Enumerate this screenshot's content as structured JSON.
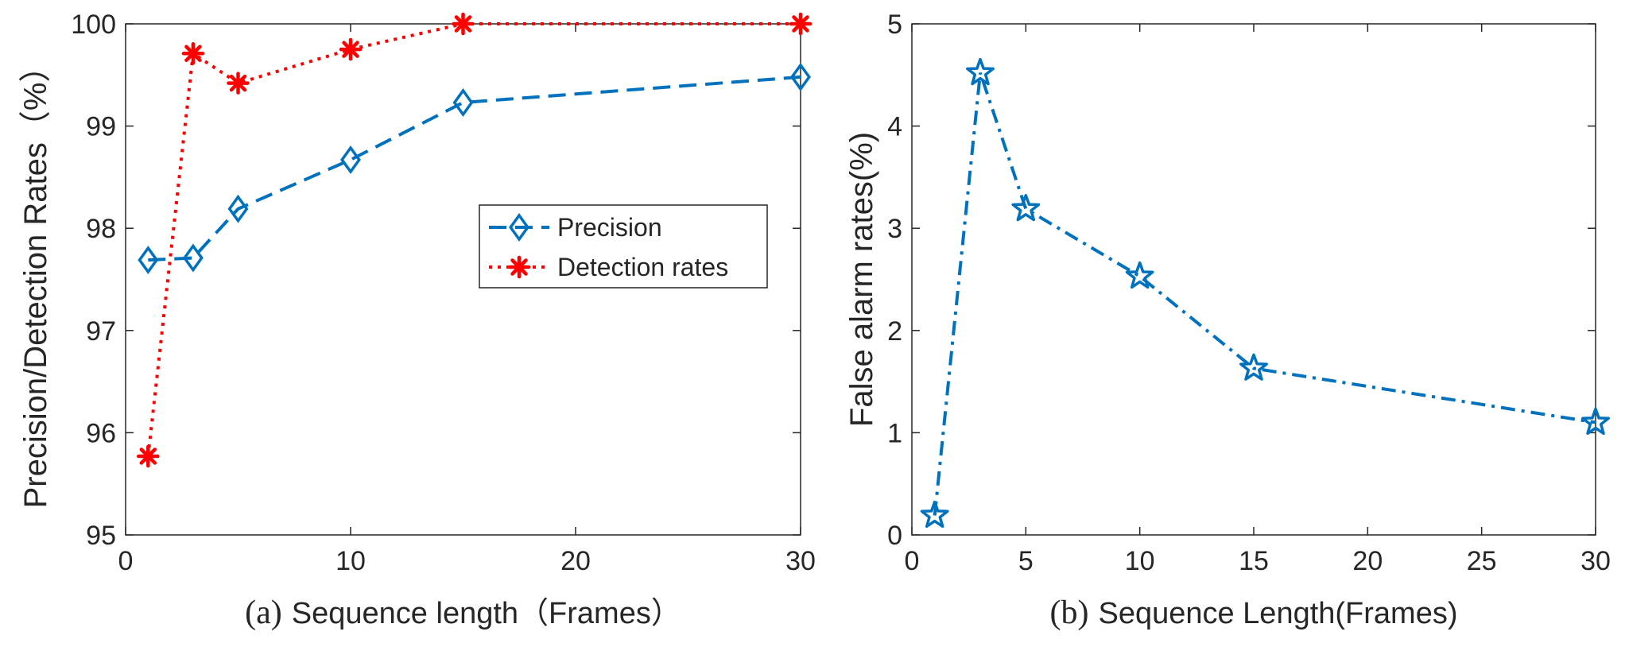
{
  "chart_data": [
    {
      "type": "line",
      "panel_label": "(a)",
      "xlabel": "Sequence length（Frames）",
      "ylabel": "Precision/Detection Rates（%）",
      "xlim": [
        0,
        30
      ],
      "ylim": [
        95,
        100
      ],
      "xticks": [
        0,
        10,
        20,
        30
      ],
      "yticks": [
        95,
        96,
        97,
        98,
        99,
        100
      ],
      "grid": false,
      "legend_position": "center-right",
      "series": [
        {
          "name": "Precision",
          "color": "#0072BD",
          "line_style": "dashed",
          "marker": "diamond",
          "x": [
            1,
            3,
            5,
            10,
            15,
            30
          ],
          "y": [
            97.69,
            97.71,
            98.19,
            98.67,
            99.23,
            99.48
          ]
        },
        {
          "name": "Detection rates",
          "color": "#FF0000",
          "line_style": "dotted",
          "marker": "asterisk",
          "x": [
            1,
            3,
            5,
            10,
            15,
            30
          ],
          "y": [
            95.77,
            99.71,
            99.42,
            99.75,
            100,
            100
          ]
        }
      ]
    },
    {
      "type": "line",
      "panel_label": "(b)",
      "xlabel": "Sequence Length(Frames)",
      "ylabel": "False alarm rates(%)",
      "xlim": [
        0,
        30
      ],
      "ylim": [
        0,
        5
      ],
      "xticks": [
        0,
        5,
        10,
        15,
        20,
        25,
        30
      ],
      "yticks": [
        0,
        1,
        2,
        3,
        4,
        5
      ],
      "grid": false,
      "series": [
        {
          "color": "#0072BD",
          "line_style": "dash-dot",
          "marker": "pentagram",
          "x": [
            1,
            3,
            5,
            10,
            15,
            30
          ],
          "y": [
            0.19,
            4.52,
            3.19,
            2.53,
            1.63,
            1.1
          ]
        }
      ]
    }
  ]
}
